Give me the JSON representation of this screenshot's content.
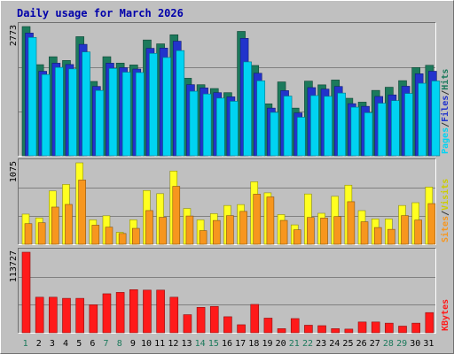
{
  "chart_data": [
    {
      "type": "bar",
      "panel": "pages-files-hits",
      "title": "Daily usage for March 2026",
      "ymax_label": "2773",
      "ylim": [
        0,
        2773
      ],
      "categories": [
        "1",
        "2",
        "3",
        "4",
        "5",
        "6",
        "7",
        "8",
        "9",
        "10",
        "11",
        "12",
        "13",
        "14",
        "15",
        "16",
        "17",
        "18",
        "19",
        "20",
        "21",
        "22",
        "23",
        "24",
        "25",
        "26",
        "27",
        "28",
        "29",
        "30",
        "31"
      ],
      "weekend_days": [
        "1",
        "7",
        "8",
        "14",
        "15",
        "21",
        "22",
        "28",
        "29"
      ],
      "series": [
        {
          "name": "Hits",
          "color": "#1c7a5c",
          "values": [
            2773,
            1955,
            2125,
            2045,
            2556,
            1595,
            2126,
            1989,
            1949,
            2485,
            2402,
            2597,
            1664,
            1525,
            1443,
            1354,
            2669,
            1938,
            1115,
            1585,
            1023,
            1602,
            1522,
            1626,
            1234,
            1151,
            1403,
            1471,
            1612,
            1894,
            1942
          ]
        },
        {
          "name": "Files",
          "color": "#2233cc",
          "values": [
            2634,
            1813,
            1987,
            1958,
            2391,
            1488,
            1987,
            1891,
            1861,
            2306,
            2311,
            2459,
            1526,
            1456,
            1354,
            1265,
            2520,
            1771,
            1023,
            1398,
            920,
            1463,
            1431,
            1487,
            1118,
            1061,
            1273,
            1306,
            1492,
            1760,
            1814
          ]
        },
        {
          "name": "Pages",
          "color": "#00d3f2",
          "values": [
            2540,
            1744,
            1897,
            1864,
            2228,
            1402,
            1875,
            1794,
            1786,
            2198,
            2109,
            2257,
            1385,
            1326,
            1237,
            1170,
            2015,
            1609,
            931,
            1281,
            827,
            1292,
            1276,
            1346,
            1043,
            924,
            1128,
            1183,
            1337,
            1556,
            1605
          ]
        }
      ],
      "legend": [
        {
          "name": "Hits",
          "color": "#1c7a5c"
        },
        {
          "name": "/",
          "color": "#333333"
        },
        {
          "name": "Files",
          "color": "#2233cc"
        },
        {
          "name": "/",
          "color": "#333333"
        },
        {
          "name": "Pages",
          "color": "#00d3f2"
        }
      ]
    },
    {
      "type": "bar",
      "panel": "visits-sites",
      "ymax_label": "1075",
      "ylim": [
        0,
        1075
      ],
      "series": [
        {
          "name": "Visits",
          "color": "#ffff20",
          "values": [
            398,
            348,
            704,
            790,
            1075,
            322,
            376,
            158,
            323,
            710,
            668,
            967,
            472,
            322,
            404,
            512,
            524,
            825,
            679,
            392,
            256,
            664,
            409,
            633,
            780,
            444,
            335,
            335,
            512,
            549,
            756
          ]
        },
        {
          "name": "Sites",
          "color": "#f7961e",
          "values": [
            272,
            284,
            491,
            526,
            848,
            252,
            226,
            142,
            210,
            445,
            356,
            765,
            373,
            180,
            314,
            378,
            434,
            661,
            625,
            315,
            191,
            354,
            346,
            366,
            562,
            297,
            221,
            197,
            378,
            320,
            537
          ]
        }
      ],
      "legend": [
        {
          "name": "Visits",
          "color": "#cccc00"
        },
        {
          "name": "/",
          "color": "#333333"
        },
        {
          "name": "Sites",
          "color": "#f7961e"
        }
      ]
    },
    {
      "type": "bar",
      "panel": "kbytes",
      "ymax_label": "113727",
      "ylim": [
        0,
        113727
      ],
      "series": [
        {
          "name": "KBytes",
          "color": "#ff1a1a",
          "values": [
            113727,
            50208,
            50208,
            48593,
            48593,
            39545,
            55055,
            56994,
            60871,
            60225,
            60225,
            50208,
            25524,
            35864,
            37156,
            22615,
            11308,
            40032,
            20677,
            5815,
            20032,
            10661,
            10015,
            5815,
            5169,
            15185,
            15185,
            13570,
            9369,
            13570,
            28478
          ]
        }
      ],
      "legend": [
        {
          "name": "KBytes",
          "color": "#ff1a1a"
        }
      ]
    }
  ]
}
